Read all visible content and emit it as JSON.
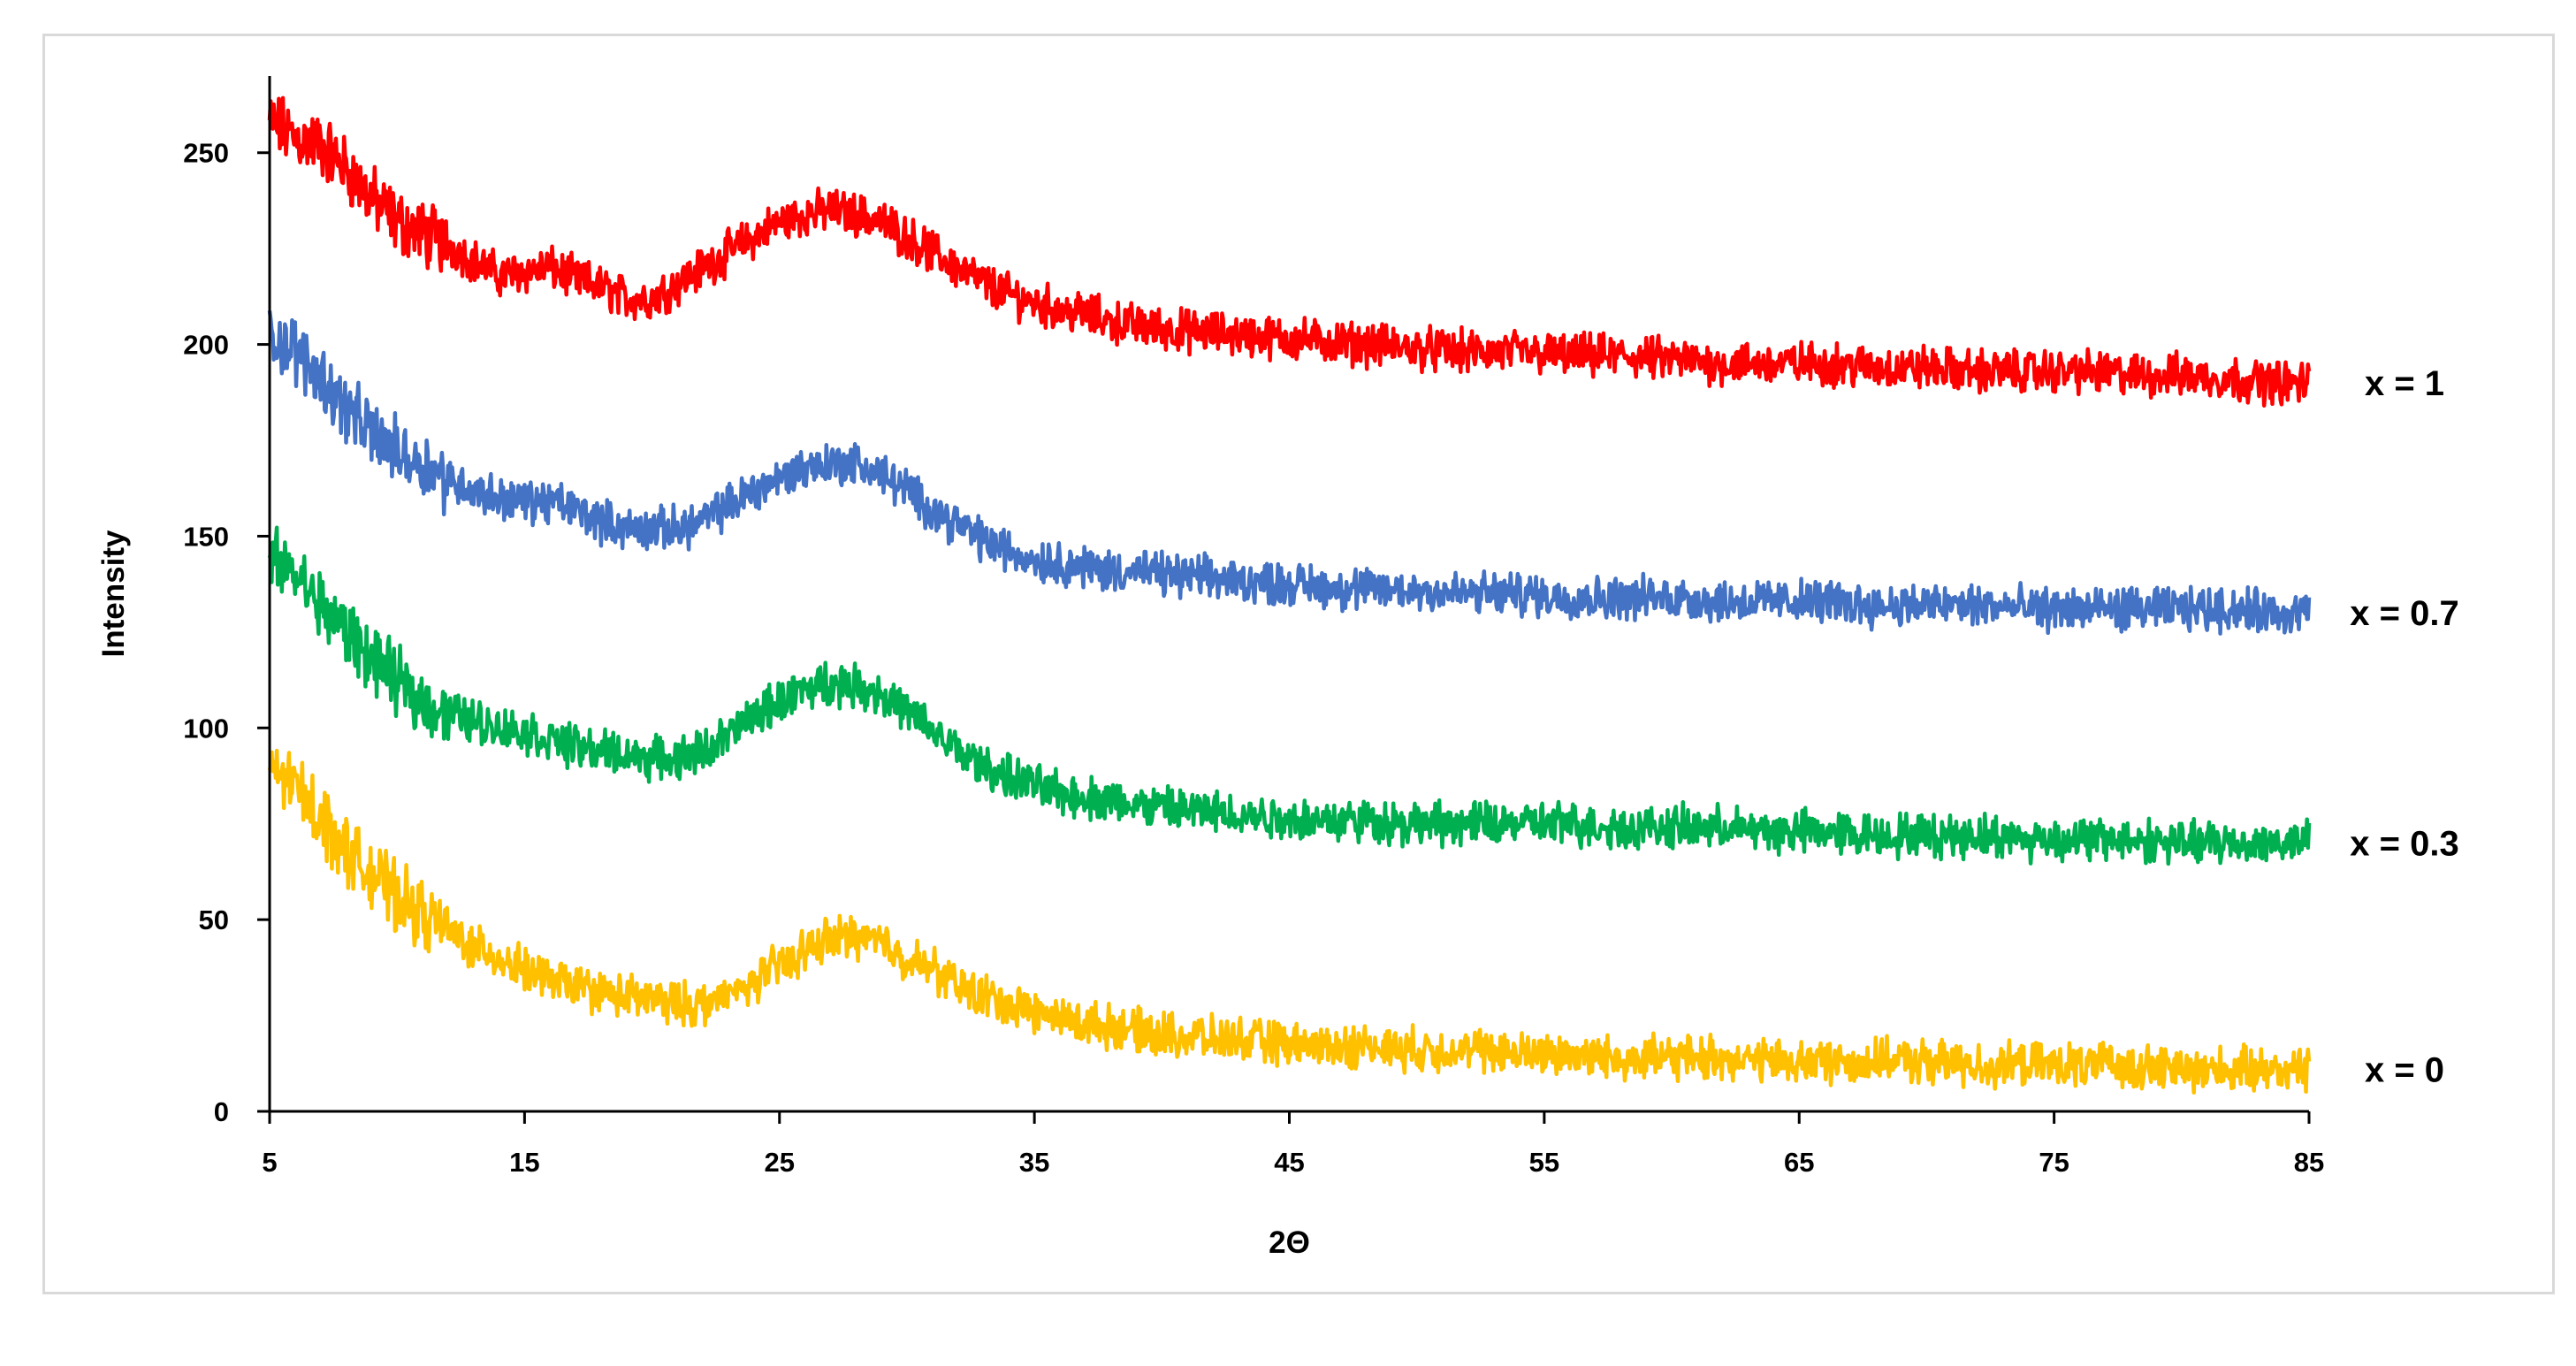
{
  "chart_data": {
    "type": "line",
    "title": "",
    "xlabel": "2Θ",
    "ylabel": "Intensity",
    "xlim": [
      5,
      85
    ],
    "ylim": [
      0,
      270
    ],
    "xticks": [
      5,
      15,
      25,
      35,
      45,
      55,
      65,
      75,
      85
    ],
    "yticks": [
      0,
      50,
      100,
      150,
      200,
      250
    ],
    "grid": false,
    "legend": "inline-right",
    "series": [
      {
        "name": "x = 1",
        "color": "#ff0000",
        "x": [
          5,
          6,
          7,
          8,
          9,
          10,
          11,
          12,
          13,
          14,
          15,
          16,
          17,
          18,
          19,
          20,
          21,
          22,
          23,
          24,
          25,
          26,
          27,
          28,
          29,
          30,
          31,
          32,
          33,
          34,
          35,
          36,
          37,
          38,
          39,
          40,
          42,
          44,
          46,
          48,
          50,
          52,
          54,
          56,
          58,
          60,
          62,
          64,
          66,
          68,
          70,
          72,
          74,
          76,
          78,
          80,
          82,
          84,
          85
        ],
        "y": [
          258,
          254,
          252,
          246,
          238,
          232,
          229,
          226,
          222,
          218,
          219,
          220,
          217,
          215,
          212,
          212,
          216,
          220,
          224,
          228,
          232,
          234,
          235,
          234,
          232,
          228,
          224,
          220,
          216,
          213,
          211,
          209,
          208,
          206,
          205,
          204,
          203,
          202,
          201,
          200,
          199,
          198,
          198,
          197,
          197,
          196,
          195,
          195,
          195,
          194,
          194,
          193,
          193,
          193,
          192,
          192,
          191,
          190,
          190
        ]
      },
      {
        "name": "x = 0.7",
        "color": "#4472c4",
        "x": [
          5,
          6,
          7,
          8,
          9,
          10,
          11,
          12,
          13,
          14,
          15,
          16,
          17,
          18,
          19,
          20,
          21,
          22,
          23,
          24,
          25,
          26,
          27,
          28,
          29,
          30,
          31,
          32,
          33,
          34,
          35,
          36,
          37,
          38,
          39,
          40,
          42,
          44,
          46,
          48,
          50,
          52,
          54,
          56,
          58,
          60,
          62,
          64,
          66,
          68,
          70,
          72,
          74,
          76,
          78,
          80,
          82,
          84,
          85
        ],
        "y": [
          203,
          198,
          192,
          183,
          177,
          172,
          169,
          165,
          162,
          160,
          159,
          159,
          157,
          154,
          152,
          152,
          152,
          154,
          158,
          162,
          165,
          168,
          169,
          169,
          166,
          162,
          157,
          153,
          149,
          146,
          144,
          143,
          142,
          141,
          141,
          140,
          139,
          138,
          137,
          136,
          136,
          135,
          135,
          134,
          134,
          134,
          133,
          133,
          133,
          132,
          132,
          132,
          131,
          131,
          131,
          131,
          131,
          130,
          130
        ]
      },
      {
        "name": "x = 0.3",
        "color": "#00b050",
        "x": [
          5,
          6,
          7,
          8,
          9,
          10,
          11,
          12,
          13,
          14,
          15,
          16,
          17,
          18,
          19,
          20,
          21,
          22,
          23,
          24,
          25,
          26,
          27,
          28,
          29,
          30,
          31,
          32,
          33,
          34,
          35,
          36,
          37,
          38,
          39,
          40,
          42,
          44,
          46,
          48,
          50,
          52,
          54,
          56,
          58,
          60,
          62,
          64,
          66,
          68,
          70,
          72,
          74,
          76,
          78,
          80,
          82,
          84,
          85
        ],
        "y": [
          144,
          140,
          132,
          125,
          118,
          112,
          107,
          104,
          102,
          100,
          99,
          97,
          95,
          94,
          93,
          92,
          92,
          94,
          98,
          103,
          107,
          110,
          112,
          111,
          109,
          104,
          99,
          94,
          90,
          87,
          85,
          83,
          82,
          81,
          80,
          79,
          78,
          77,
          76,
          76,
          75,
          75,
          75,
          75,
          74,
          74,
          74,
          73,
          73,
          72,
          72,
          72,
          71,
          71,
          71,
          70,
          70,
          70,
          70
        ]
      },
      {
        "name": "x = 0",
        "color": "#ffc000",
        "x": [
          5,
          6,
          7,
          8,
          9,
          10,
          11,
          12,
          13,
          14,
          15,
          16,
          17,
          18,
          19,
          20,
          21,
          22,
          23,
          24,
          25,
          26,
          27,
          28,
          29,
          30,
          31,
          32,
          33,
          34,
          35,
          36,
          37,
          38,
          39,
          40,
          42,
          44,
          46,
          48,
          50,
          52,
          54,
          56,
          58,
          60,
          62,
          64,
          66,
          68,
          70,
          72,
          74,
          76,
          78,
          80,
          82,
          84,
          85
        ],
        "y": [
          90,
          85,
          77,
          68,
          62,
          56,
          51,
          47,
          43,
          40,
          37,
          34,
          33,
          31,
          30,
          29,
          28,
          28,
          30,
          34,
          38,
          42,
          45,
          46,
          44,
          40,
          37,
          33,
          30,
          28,
          26,
          24,
          23,
          22,
          21,
          20,
          19,
          18,
          17,
          17,
          16,
          16,
          15,
          15,
          14,
          14,
          14,
          13,
          13,
          13,
          13,
          12,
          12,
          12,
          12,
          11,
          11,
          11,
          11
        ]
      }
    ]
  }
}
